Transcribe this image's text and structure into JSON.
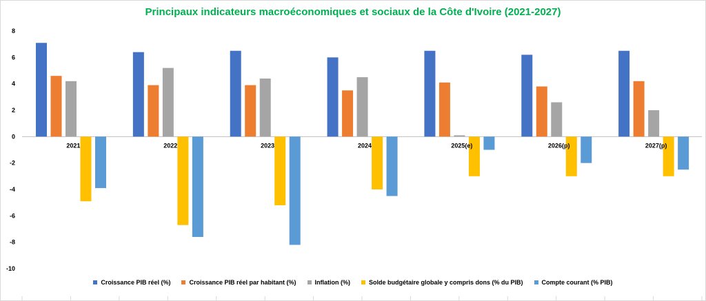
{
  "chart_data": {
    "type": "bar",
    "title": "Principaux indicateurs macroéconomiques et sociaux de la Côte d'Ivoire (2021-2027)",
    "categories": [
      "2021",
      "2022",
      "2023",
      "2024",
      "2025(e)",
      "2026(p)",
      "2027(p)"
    ],
    "ylim": [
      -10,
      8
    ],
    "yticks": [
      -10,
      -8,
      -6,
      -4,
      -2,
      0,
      2,
      4,
      6,
      8
    ],
    "grid": false,
    "legend_position": "bottom",
    "series": [
      {
        "name": "Croissance PIB réel (%)",
        "color": "#4472c4",
        "values": [
          7.1,
          6.4,
          6.5,
          6.0,
          6.5,
          6.2,
          6.5
        ]
      },
      {
        "name": "Croissance PIB réel par habitant (%)",
        "color": "#ed7d31",
        "values": [
          4.6,
          3.9,
          3.9,
          3.5,
          4.1,
          3.8,
          4.2
        ]
      },
      {
        "name": "Inflation (%)",
        "color": "#a5a5a5",
        "values": [
          4.2,
          5.2,
          4.4,
          4.5,
          0.1,
          2.6,
          2.0
        ]
      },
      {
        "name": "Solde budgétaire globale y compris dons (% du PIB)",
        "color": "#ffc000",
        "values": [
          -4.9,
          -6.7,
          -5.2,
          -4.0,
          -3.0,
          -3.0,
          -3.0
        ]
      },
      {
        "name": "Compte courant (% PIB)",
        "color": "#5b9bd5",
        "values": [
          -3.9,
          -7.6,
          -8.2,
          -4.5,
          -1.0,
          -2.0,
          -2.5
        ]
      }
    ]
  }
}
